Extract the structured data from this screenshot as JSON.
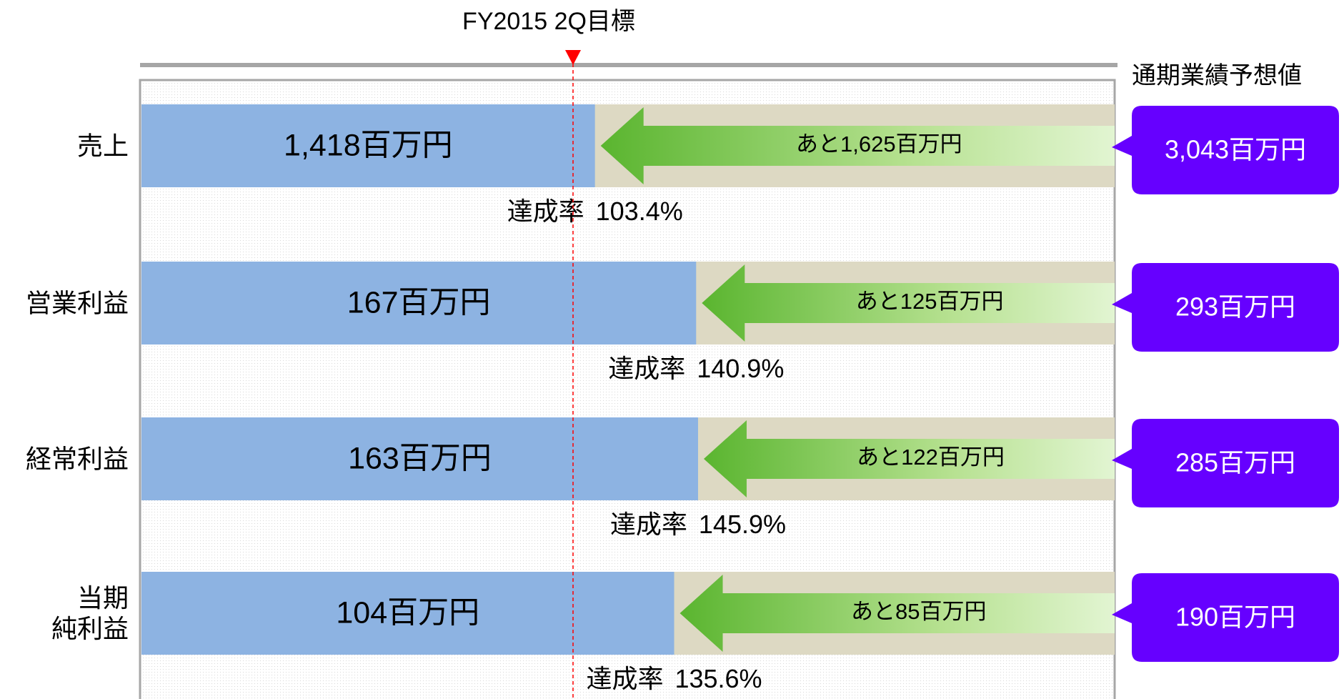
{
  "chart_data": {
    "type": "progress",
    "title": "FY2015 2Q目標",
    "forecast_header": "通期業績予想値",
    "rate_prefix": "達成率",
    "categories": [
      "売上",
      "営業利益",
      "経常利益",
      "当期\n純利益"
    ],
    "series": [
      {
        "name": "actual",
        "color": "#8db3e2",
        "values": [
          1418,
          167,
          163,
          104
        ],
        "value_labels": [
          "1,418百万円",
          "167百万円",
          "163百万円",
          "104百万円"
        ]
      },
      {
        "name": "remaining",
        "color": "#5ab52f",
        "values": [
          1625,
          125,
          122,
          85
        ],
        "value_labels": [
          "あと1,625百万円",
          "あと125百万円",
          "あと122百万円",
          "あと85百万円"
        ]
      },
      {
        "name": "forecast",
        "color": "#6600ff",
        "values": [
          3043,
          293,
          285,
          190
        ],
        "value_labels": [
          "3,043百万円",
          "293百万円",
          "285百万円",
          "190百万円"
        ]
      },
      {
        "name": "rate",
        "values": [
          103.4,
          140.9,
          145.9,
          135.6
        ],
        "value_labels": [
          "103.4%",
          "140.9%",
          "145.9%",
          "135.6%"
        ]
      }
    ]
  }
}
